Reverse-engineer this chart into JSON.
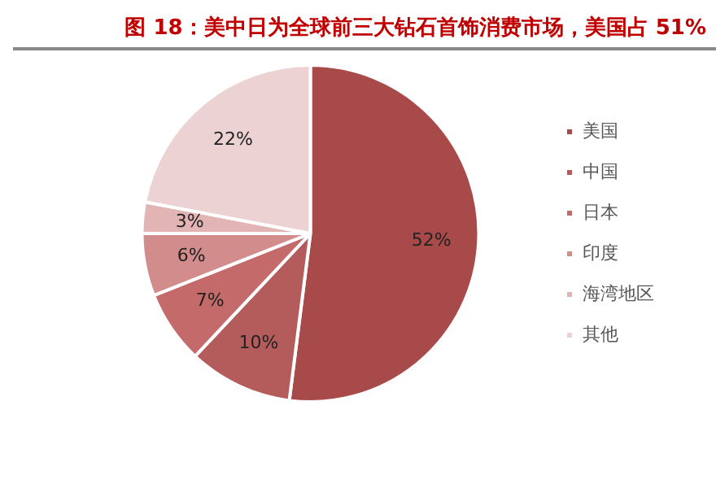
{
  "chart_data": {
    "type": "pie",
    "title": "图 18：美中日为全球前三大钻石首饰消费市场，美国占 51%",
    "categories": [
      "美国",
      "中国",
      "日本",
      "印度",
      "海湾地区",
      "其他"
    ],
    "values": [
      52,
      10,
      7,
      6,
      3,
      22
    ],
    "colors": [
      "#a94a4a",
      "#b45c5c",
      "#c46a6a",
      "#d38c8c",
      "#e2b4b4",
      "#ecd2d2"
    ],
    "value_labels": [
      "52%",
      "10%",
      "7%",
      "6%",
      "3%",
      "22%"
    ],
    "legend": "right"
  }
}
